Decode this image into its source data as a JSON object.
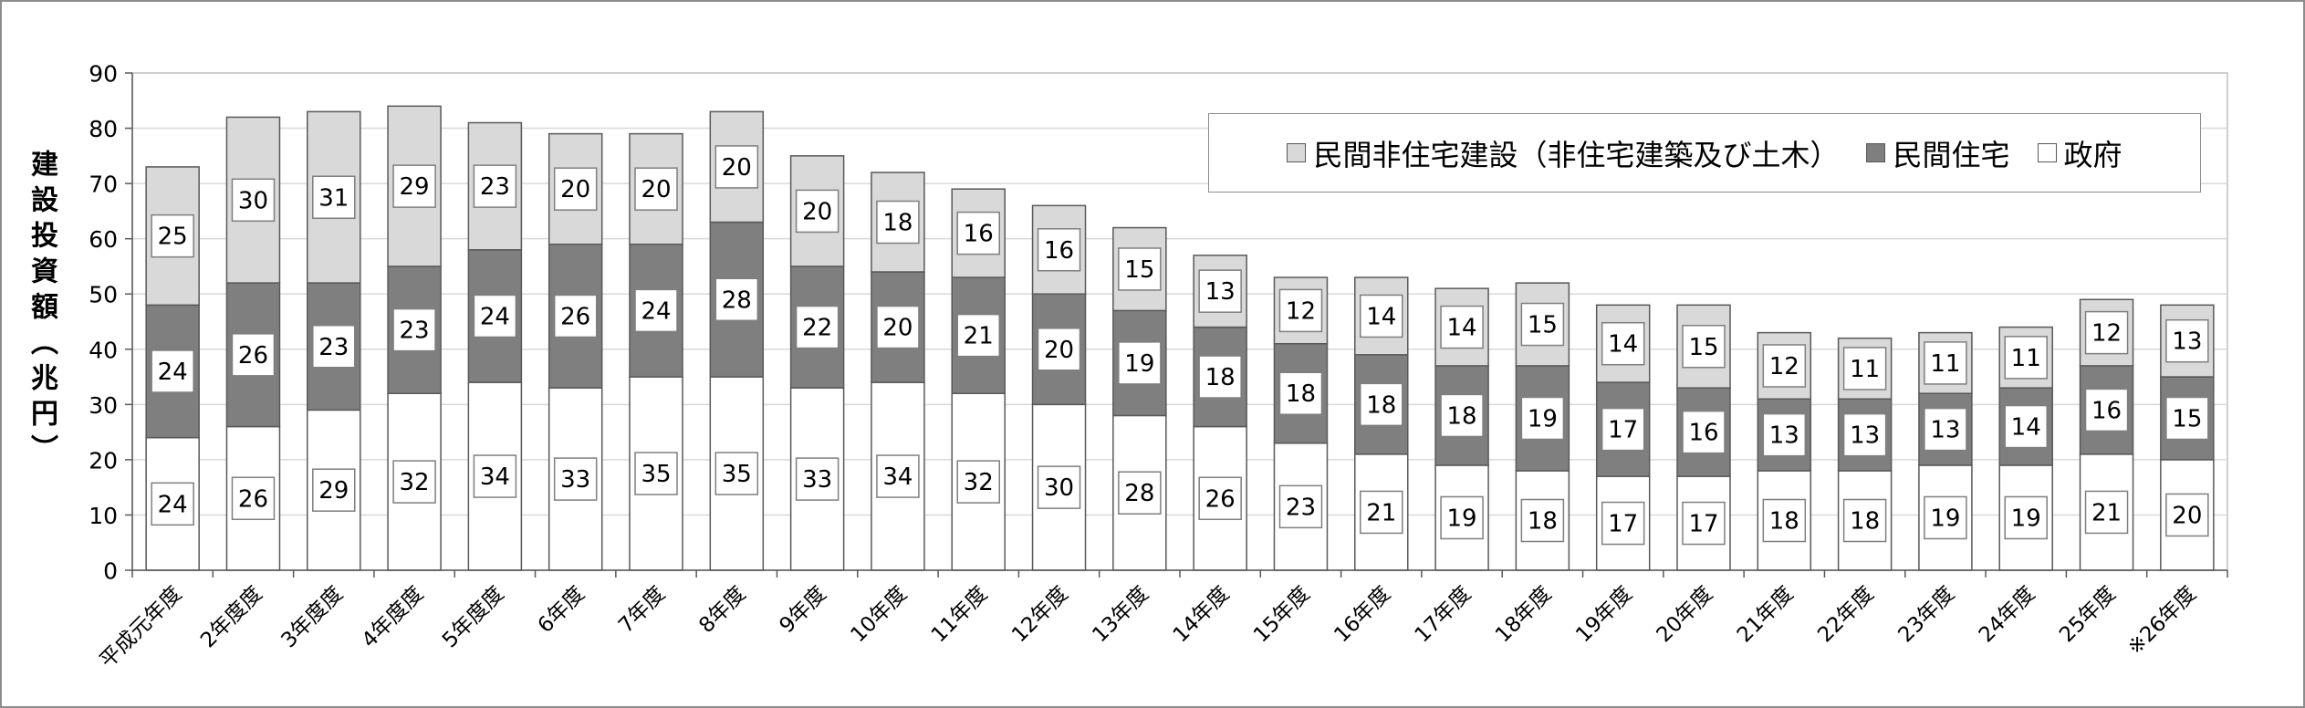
{
  "chart_data": {
    "type": "bar",
    "stacked": true,
    "categories": [
      "平成元年度",
      "2年度度",
      "3年度度",
      "4年度度",
      "5年度度",
      "6年度",
      "7年度",
      "8年度",
      "9年度",
      "10年度",
      "11年度",
      "12年度",
      "13年度",
      "14年度",
      "15年度",
      "16年度",
      "17年度",
      "18年度",
      "19年度",
      "20年度",
      "21年度",
      "22年度",
      "23年度",
      "24年度",
      "25年度",
      "※26年度"
    ],
    "series": [
      {
        "name": "政府",
        "color": "#ffffff",
        "values": [
          24,
          26,
          29,
          32,
          34,
          33,
          35,
          35,
          33,
          34,
          32,
          30,
          28,
          26,
          23,
          21,
          19,
          18,
          17,
          17,
          18,
          18,
          19,
          19,
          21,
          20
        ]
      },
      {
        "name": "民間住宅",
        "color": "#7f7f7f",
        "values": [
          24,
          26,
          23,
          23,
          24,
          26,
          24,
          28,
          22,
          20,
          21,
          20,
          19,
          18,
          18,
          18,
          18,
          19,
          17,
          16,
          13,
          13,
          13,
          14,
          16,
          15
        ]
      },
      {
        "name": "民間非住宅建設（非住宅建築及び土木）",
        "color": "#d9d9d9",
        "values": [
          25,
          30,
          31,
          29,
          23,
          20,
          20,
          20,
          20,
          18,
          16,
          16,
          15,
          13,
          12,
          14,
          14,
          15,
          14,
          15,
          12,
          11,
          11,
          11,
          12,
          13
        ]
      }
    ],
    "ylabel": "建設投資額（兆円）",
    "ylim": [
      0,
      90
    ],
    "yticks": [
      0,
      10,
      20,
      30,
      40,
      50,
      60,
      70,
      80,
      90
    ],
    "grid": true,
    "legend_position": "top-right"
  }
}
